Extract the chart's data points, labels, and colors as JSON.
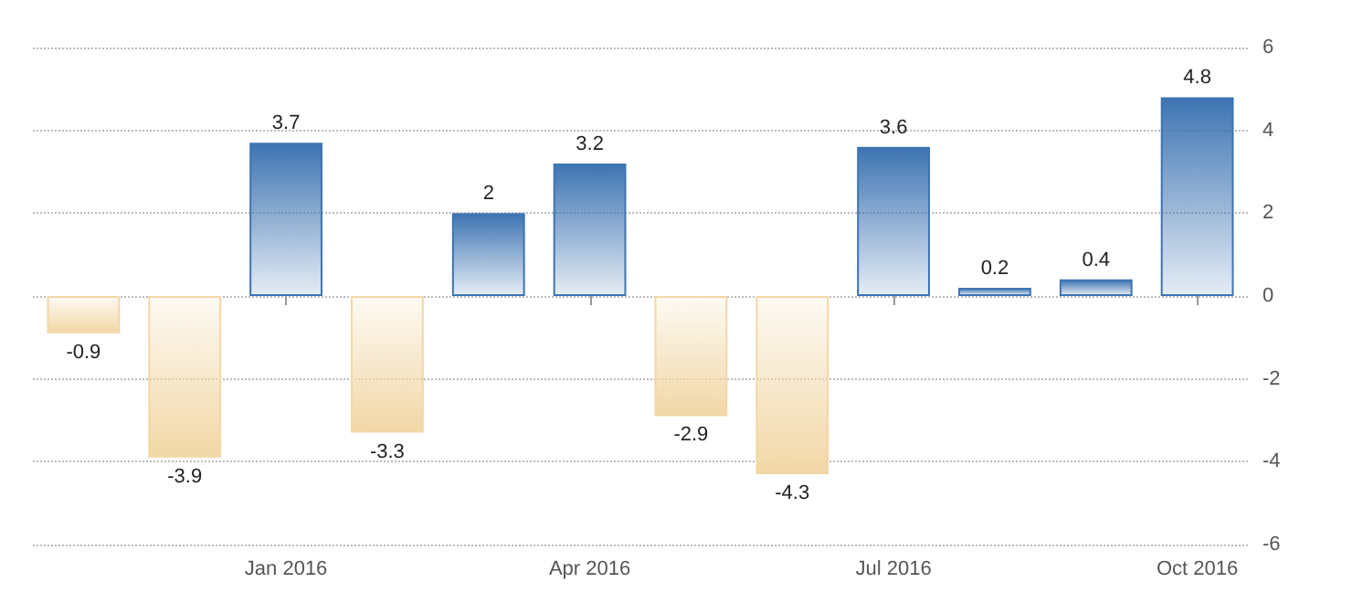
{
  "chart_data": {
    "type": "bar",
    "categories": [
      null,
      null,
      "Jan 2016",
      null,
      null,
      "Apr 2016",
      null,
      null,
      "Jul 2016",
      null,
      null,
      "Oct 2016"
    ],
    "values": [
      -0.9,
      -3.9,
      3.7,
      -3.3,
      2,
      3.2,
      -2.9,
      -4.3,
      3.6,
      0.2,
      0.4,
      4.8
    ],
    "colors": [
      "#f2d7a6",
      "#f2d7a6",
      "#3d74b3",
      "#f2d7a6",
      "#3d74b3",
      "#3d74b3",
      "#f2d7a6",
      "#f2d7a6",
      "#3d74b3",
      "#3d74b3",
      "#3d74b3",
      "#3d74b3"
    ],
    "ylim": [
      -6,
      6
    ],
    "yticks": [
      -6,
      -4,
      -2,
      0,
      2,
      4,
      6
    ],
    "grid": "y",
    "data_labels": true
  }
}
